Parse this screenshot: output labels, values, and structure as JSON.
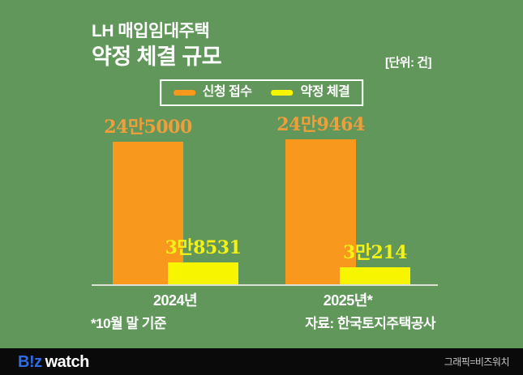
{
  "header": {
    "title_line1": "LH 매입임대주택",
    "title_line2": "약정 체결 규모",
    "unit_label": "[단위: 건]"
  },
  "legend": {
    "items": [
      {
        "label": "신청 접수",
        "color": "#f8981d"
      },
      {
        "label": "약정 체결",
        "color": "#f8f500"
      }
    ]
  },
  "chart_data": {
    "type": "bar",
    "title": "LH 매입임대주택 약정 체결 규모",
    "unit": "건",
    "categories": [
      "2024년",
      "2025년*"
    ],
    "series": [
      {
        "name": "신청 접수",
        "color": "#f8981d",
        "label_color": "#ef9e3c",
        "values": [
          245000,
          249464
        ],
        "value_labels": [
          "24만5000",
          "24만9464"
        ]
      },
      {
        "name": "약정 체결",
        "color": "#f8f500",
        "label_color": "#f4f116",
        "values": [
          38531,
          30214
        ],
        "value_labels": [
          "3만8531",
          "3만214"
        ]
      }
    ],
    "ylim": [
      0,
      249464
    ],
    "grid": false,
    "legend_position": "top"
  },
  "footnotes": {
    "left": "*10월 말 기준",
    "right": "자료: 한국토지주택공사"
  },
  "footer": {
    "logo_biz": "B!z",
    "logo_watch": "watch",
    "credit": "그래픽=비즈워치"
  },
  "colors": {
    "background": "#61975b",
    "axis_line": "#dce0d5",
    "footer_bg": "#0a0a0a",
    "logo_blue": "#2d6ce4"
  }
}
